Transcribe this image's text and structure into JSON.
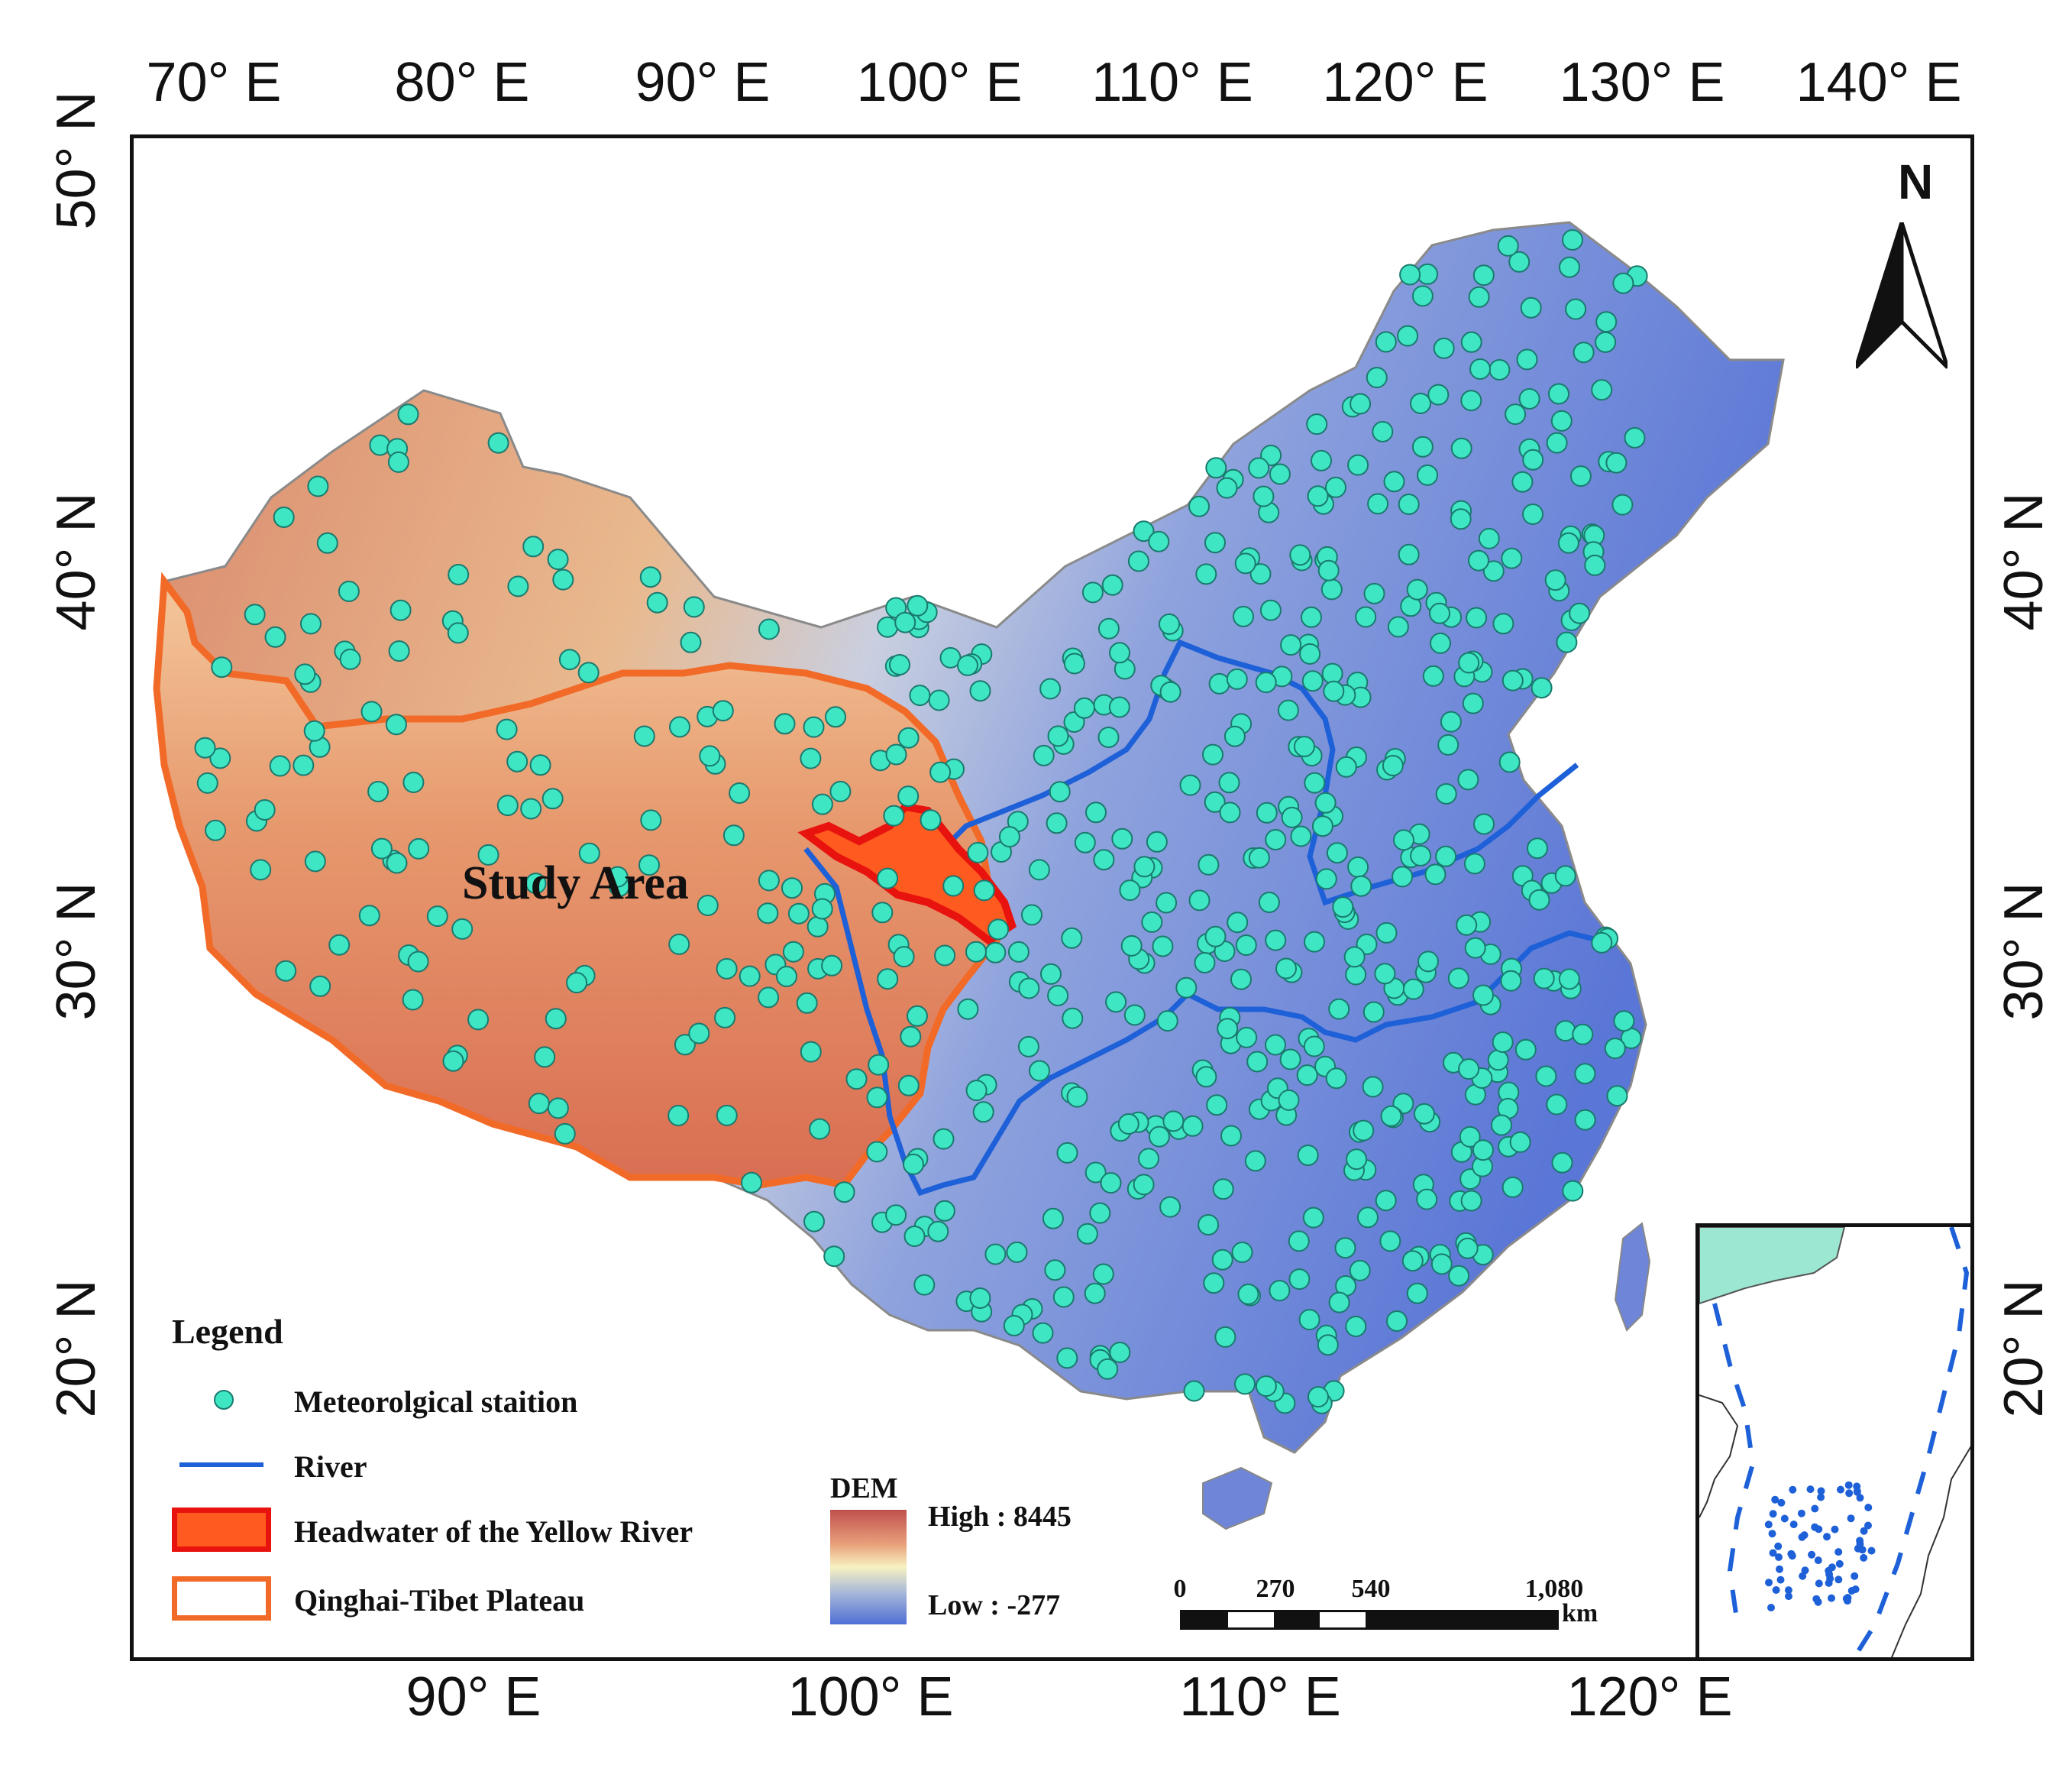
{
  "axes": {
    "top_labels": [
      "70° E",
      "80° E",
      "90° E",
      "100° E",
      "110° E",
      "120° E",
      "130° E",
      "140° E"
    ],
    "bottom_labels": [
      "90° E",
      "100° E",
      "110° E",
      "120° E"
    ],
    "left_labels": [
      "50° N",
      "40° N",
      "30° N",
      "20° N"
    ],
    "right_labels": [
      "40° N",
      "30° N",
      "20° N"
    ]
  },
  "map": {
    "study_area_label": "Study Area",
    "north_label": "N"
  },
  "legend": {
    "title": "Legend",
    "station_label": "Meteorolgical staition",
    "river_label": "River",
    "headwater_label": "Headwater of the Yellow River",
    "plateau_label": "Qinghai-Tibet Plateau"
  },
  "dem": {
    "title": "DEM",
    "high_label": "High : 8445",
    "low_label": "Low : -277"
  },
  "scale": {
    "ticks": [
      "0",
      "270",
      "540",
      "1,080"
    ],
    "unit": "km"
  },
  "colors": {
    "station_fill": "#3ee6c4",
    "river": "#1d60d8",
    "headwater_fill": "#ff5a1f",
    "headwater_border": "#e8130e",
    "plateau_border": "#f26a28",
    "dem_high": "#c0504d",
    "dem_mid": "#f7f2c2",
    "dem_low": "#4f6fd6"
  }
}
